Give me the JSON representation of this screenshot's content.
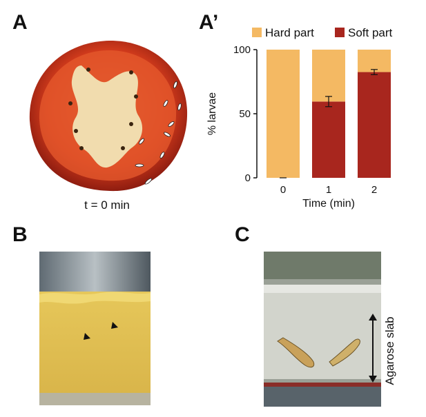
{
  "figure": {
    "panel_a_label": "A",
    "panel_a2_label": "A’",
    "panel_b_label": "B",
    "panel_c_label": "C",
    "tomato_caption": "t = 0 min",
    "agarose_label": "Agarose slab"
  },
  "colors": {
    "hard": "#f4b963",
    "soft": "#a8261e",
    "tomato_skin": "#c8301a",
    "tomato_flesh": "#e0522a",
    "tomato_core": "#f3dcae",
    "jar_food": "#e7c45a"
  },
  "chart_data": {
    "type": "bar",
    "stacked": true,
    "categories": [
      "0",
      "1",
      "2"
    ],
    "series": [
      {
        "name": "Hard part",
        "values": [
          100,
          40.5,
          17.5
        ]
      },
      {
        "name": "Soft part",
        "values": [
          0,
          59.5,
          82.5
        ],
        "errors": [
          0,
          4,
          2
        ]
      }
    ],
    "xlabel": "Time (min)",
    "ylabel": "% larvae",
    "ylim": [
      0,
      100
    ],
    "yticks": [
      0,
      50,
      100
    ],
    "legend": "top",
    "grid": false
  }
}
